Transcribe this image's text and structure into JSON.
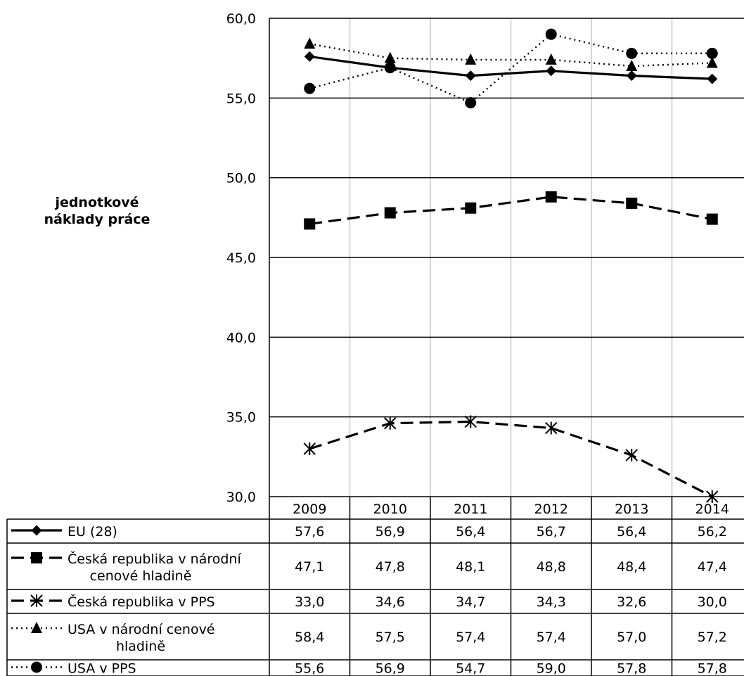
{
  "chart_data": {
    "type": "line",
    "title": "",
    "ylabel_lines": [
      "jednotkové",
      "náklady práce"
    ],
    "xlabel": "",
    "ylim": [
      30,
      60
    ],
    "y_ticks": [
      "60,0",
      "55,0",
      "50,0",
      "45,0",
      "40,0",
      "35,0",
      "30,0"
    ],
    "y_tick_values": [
      60,
      55,
      50,
      45,
      40,
      35,
      30
    ],
    "categories": [
      "2009",
      "2010",
      "2011",
      "2012",
      "2013",
      "2014"
    ],
    "grid": true,
    "legend_placement": "data-table-below",
    "series": [
      {
        "name_lines": [
          "EU (28)"
        ],
        "values": [
          57.6,
          56.9,
          56.4,
          56.7,
          56.4,
          56.2
        ],
        "labels": [
          "57,6",
          "56,9",
          "56,4",
          "56,7",
          "56,4",
          "56,2"
        ],
        "line_style": "solid",
        "marker": "diamond"
      },
      {
        "name_lines": [
          "Česká republika v národní",
          "cenové hladině"
        ],
        "values": [
          47.1,
          47.8,
          48.1,
          48.8,
          48.4,
          47.4
        ],
        "labels": [
          "47,1",
          "47,8",
          "48,1",
          "48,8",
          "48,4",
          "47,4"
        ],
        "line_style": "dashed",
        "marker": "square"
      },
      {
        "name_lines": [
          "Česká republika v PPS"
        ],
        "values": [
          33.0,
          34.6,
          34.7,
          34.3,
          32.6,
          30.0
        ],
        "labels": [
          "33,0",
          "34,6",
          "34,7",
          "34,3",
          "32,6",
          "30,0"
        ],
        "line_style": "dashed",
        "marker": "star"
      },
      {
        "name_lines": [
          "USA v národní cenové",
          "hladině"
        ],
        "values": [
          58.4,
          57.5,
          57.4,
          57.4,
          57.0,
          57.2
        ],
        "labels": [
          "58,4",
          "57,5",
          "57,4",
          "57,4",
          "57,0",
          "57,2"
        ],
        "line_style": "dotted",
        "marker": "triangle"
      },
      {
        "name_lines": [
          "USA v PPS"
        ],
        "values": [
          55.6,
          56.9,
          54.7,
          59.0,
          57.8,
          57.8
        ],
        "labels": [
          "55,6",
          "56,9",
          "54,7",
          "59,0",
          "57,8",
          "57,8"
        ],
        "line_style": "dotted",
        "marker": "circle"
      }
    ]
  }
}
